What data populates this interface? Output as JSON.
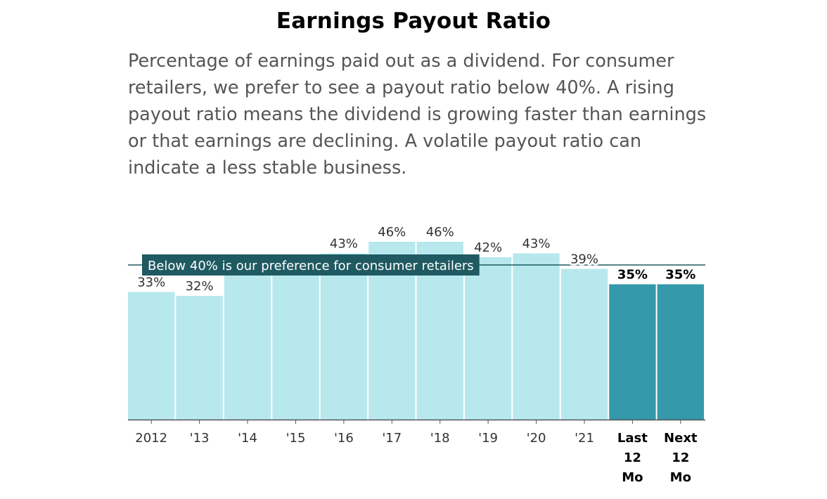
{
  "title": "Earnings Payout Ratio",
  "subtitle": "Percentage of earnings paid out as a dividend. For consumer retailers, we prefer to see a payout ratio below 40%. A rising payout ratio means the dividend is growing faster than earnings or that earnings are declining. A volatile payout ratio can indicate a less stable business.",
  "colors": {
    "bar_historical": "#b7e8ee",
    "bar_estimate": "#3499ab",
    "reference_line": "#1f5a62",
    "annotation_bg": "#1f5a62",
    "annotation_text": "#ffffff",
    "label_text": "#333333",
    "axis": "#555555"
  },
  "chart_data": {
    "type": "bar",
    "categories": [
      "2012",
      "'13",
      "'14",
      "'15",
      "'16",
      "'17",
      "'18",
      "'19",
      "'20",
      "'21",
      "Last 12 Mo",
      "Next 12 Mo"
    ],
    "values": [
      33,
      32,
      41,
      42,
      43,
      46,
      46,
      42,
      43,
      39,
      35,
      35
    ],
    "data_labels": [
      "33%",
      "32%",
      "",
      "",
      "43%",
      "46%",
      "46%",
      "42%",
      "43%",
      "39%",
      "35%",
      "35%"
    ],
    "highlighted": [
      false,
      false,
      false,
      false,
      false,
      false,
      false,
      false,
      false,
      false,
      true,
      true
    ],
    "ylim": [
      0,
      46
    ],
    "reference_line": {
      "value": 40,
      "label": "Below 40% is our preference for consumer retailers"
    },
    "grid": false,
    "xlabel": "",
    "ylabel": ""
  }
}
